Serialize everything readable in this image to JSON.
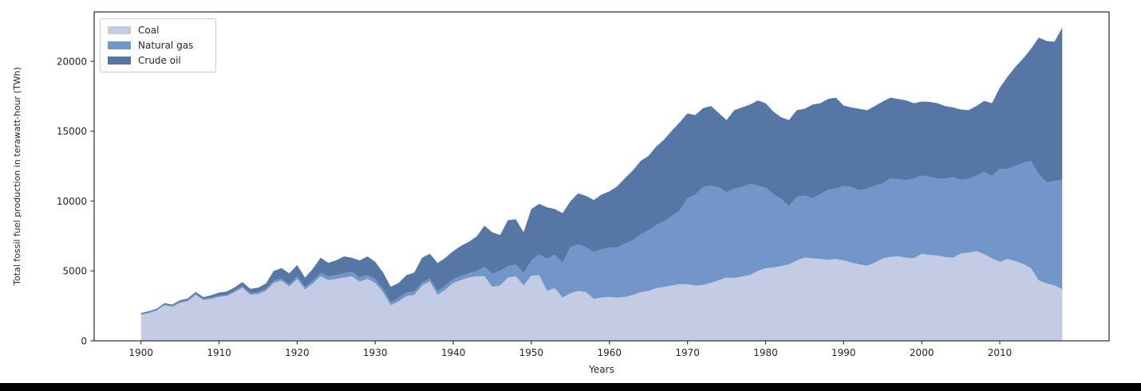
{
  "figure": {
    "background_color": "#ffffff",
    "frame_color": "#3a3a3a",
    "text_color": "#262626",
    "bottom_bar_color": "#000000"
  },
  "legend": {
    "items": [
      "Coal",
      "Natural gas",
      "Crude oil"
    ]
  },
  "chart_data": {
    "type": "area",
    "stacked": true,
    "title": "",
    "xlabel": "Years",
    "ylabel": "Total fossil fuel production in terawatt-hour (TWh)",
    "xlim": [
      1894,
      2024
    ],
    "ylim": [
      0,
      23530
    ],
    "grid": false,
    "legend_position": "upper-left",
    "xticks": [
      1900,
      1910,
      1920,
      1930,
      1940,
      1950,
      1960,
      1970,
      1980,
      1990,
      2000,
      2010
    ],
    "yticks": [
      0,
      5000,
      10000,
      15000,
      20000
    ],
    "x": [
      1900,
      1901,
      1902,
      1903,
      1904,
      1905,
      1906,
      1907,
      1908,
      1909,
      1910,
      1911,
      1912,
      1913,
      1914,
      1915,
      1916,
      1917,
      1918,
      1919,
      1920,
      1921,
      1922,
      1923,
      1924,
      1925,
      1926,
      1927,
      1928,
      1929,
      1930,
      1931,
      1932,
      1933,
      1934,
      1935,
      1936,
      1937,
      1938,
      1939,
      1940,
      1941,
      1942,
      1943,
      1944,
      1945,
      1946,
      1947,
      1948,
      1949,
      1950,
      1951,
      1952,
      1953,
      1954,
      1955,
      1956,
      1957,
      1958,
      1959,
      1960,
      1961,
      1962,
      1963,
      1964,
      1965,
      1966,
      1967,
      1968,
      1969,
      1970,
      1971,
      1972,
      1973,
      1974,
      1975,
      1976,
      1977,
      1978,
      1979,
      1980,
      1981,
      1982,
      1983,
      1984,
      1985,
      1986,
      1987,
      1988,
      1989,
      1990,
      1991,
      1992,
      1993,
      1994,
      1995,
      1996,
      1997,
      1998,
      1999,
      2000,
      2001,
      2002,
      2003,
      2004,
      2005,
      2006,
      2007,
      2008,
      2009,
      2010,
      2011,
      2012,
      2013,
      2014,
      2015,
      2016,
      2017,
      2018
    ],
    "series": [
      {
        "name": "Coal",
        "color": "#c4cce4",
        "values": [
          1870,
          1990,
          2160,
          2550,
          2440,
          2720,
          2840,
          3290,
          2910,
          3010,
          3140,
          3200,
          3480,
          3800,
          3300,
          3350,
          3580,
          4150,
          4300,
          3880,
          4430,
          3675,
          4100,
          4620,
          4335,
          4430,
          4525,
          4620,
          4240,
          4430,
          4145,
          3480,
          2540,
          2820,
          3200,
          3290,
          3960,
          4245,
          3290,
          3670,
          4150,
          4340,
          4530,
          4620,
          4620,
          3860,
          3960,
          4530,
          4620,
          3960,
          4650,
          4700,
          3580,
          3770,
          3100,
          3400,
          3580,
          3480,
          3010,
          3100,
          3140,
          3100,
          3140,
          3290,
          3480,
          3580,
          3770,
          3860,
          3960,
          4050,
          4050,
          3950,
          4000,
          4150,
          4335,
          4525,
          4500,
          4600,
          4700,
          5000,
          5190,
          5250,
          5350,
          5470,
          5755,
          5950,
          5900,
          5850,
          5800,
          5850,
          5755,
          5600,
          5470,
          5380,
          5600,
          5890,
          6000,
          6050,
          5950,
          5900,
          6230,
          6150,
          6100,
          6000,
          5950,
          6250,
          6300,
          6420,
          6200,
          5900,
          5660,
          5850,
          5700,
          5500,
          5190,
          4330,
          4100,
          3975,
          3690
        ]
      },
      {
        "name": "Natural gas",
        "color": "#7196c8",
        "values": [
          50,
          50,
          55,
          60,
          60,
          70,
          75,
          80,
          80,
          90,
          100,
          105,
          110,
          120,
          115,
          130,
          140,
          150,
          160,
          150,
          200,
          180,
          200,
          250,
          260,
          290,
          310,
          330,
          300,
          285,
          280,
          250,
          230,
          240,
          250,
          250,
          190,
          225,
          290,
          290,
          280,
          290,
          300,
          380,
          660,
          950,
          1040,
          800,
          850,
          900,
          1100,
          1500,
          2275,
          2400,
          2470,
          3300,
          3320,
          3200,
          3350,
          3450,
          3520,
          3600,
          3810,
          3900,
          4140,
          4320,
          4510,
          4700,
          4980,
          5270,
          6150,
          6500,
          7000,
          6950,
          6650,
          6100,
          6400,
          6400,
          6550,
          6100,
          5770,
          5250,
          4800,
          4180,
          4545,
          4450,
          4300,
          4650,
          5000,
          5050,
          5325,
          5400,
          5300,
          5500,
          5500,
          5360,
          5620,
          5500,
          5550,
          5700,
          5590,
          5600,
          5500,
          5600,
          5770,
          5280,
          5300,
          5400,
          5890,
          5900,
          6630,
          6450,
          6800,
          7260,
          7670,
          7600,
          7240,
          7455,
          7840
        ]
      },
      {
        "name": "Crude oil",
        "color": "#5677a6",
        "values": [
          70,
          75,
          80,
          90,
          95,
          110,
          120,
          130,
          140,
          160,
          210,
          220,
          240,
          280,
          300,
          320,
          380,
          700,
          750,
          800,
          800,
          670,
          850,
          1080,
          980,
          1040,
          1205,
          1000,
          1215,
          1325,
          1235,
          1170,
          1090,
          1085,
          1250,
          1350,
          1800,
          1760,
          1990,
          1990,
          1990,
          2170,
          2260,
          2470,
          2950,
          2950,
          2570,
          3300,
          3230,
          2900,
          3680,
          3600,
          3705,
          3260,
          3570,
          3290,
          3660,
          3690,
          3720,
          3910,
          4040,
          4350,
          4700,
          5000,
          5250,
          5330,
          5620,
          5840,
          6100,
          6300,
          6070,
          5700,
          5650,
          5700,
          5315,
          5175,
          5600,
          5700,
          5650,
          6100,
          6040,
          5900,
          5850,
          6150,
          6200,
          6200,
          6700,
          6500,
          6500,
          6500,
          5750,
          5700,
          5830,
          5620,
          5700,
          5870,
          5780,
          5750,
          5700,
          5400,
          5300,
          5350,
          5400,
          5200,
          4980,
          5020,
          4900,
          4980,
          5080,
          5200,
          5810,
          6600,
          7100,
          7440,
          8040,
          9770,
          10110,
          9970,
          10870
        ]
      }
    ]
  }
}
